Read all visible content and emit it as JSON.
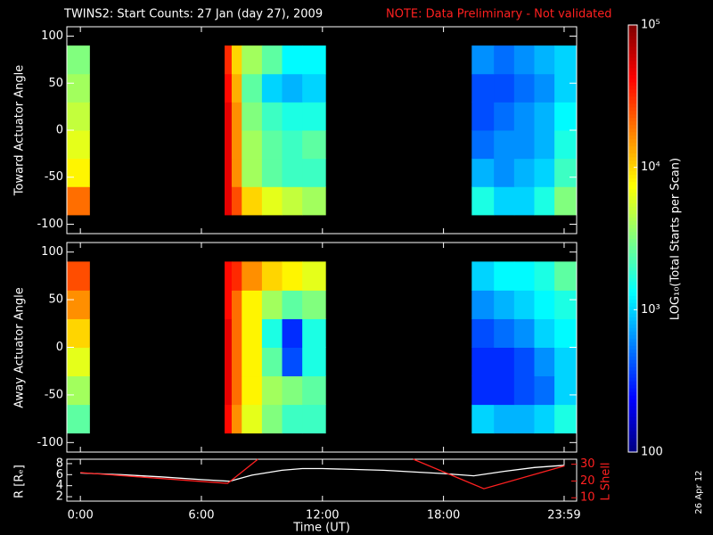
{
  "chart_data": [
    {
      "type": "heatmap",
      "title": "TWINS2: Start Counts: 27 Jan (day  27), 2009",
      "note": "NOTE: Data Preliminary - Not validated",
      "ylabel": "Toward Actuator Angle",
      "x": [
        -0.67,
        0.45,
        7.15,
        7.5,
        8,
        9,
        10,
        11,
        12.15,
        19.4,
        20.5,
        21.5,
        22.5,
        23.5,
        24.6
      ],
      "y": [
        -90,
        -60,
        -30,
        0,
        30,
        60,
        90
      ],
      "values": [
        [
          20000,
          null,
          50000,
          25000,
          10000,
          6300,
          5000,
          4000,
          null,
          1600,
          1000,
          1000,
          1600,
          3200
        ],
        [
          8000,
          null,
          50000,
          16000,
          4000,
          2500,
          2000,
          2000,
          null,
          800,
          630,
          800,
          1000,
          2000
        ],
        [
          6300,
          null,
          50000,
          16000,
          4000,
          2500,
          2000,
          2500,
          null,
          500,
          630,
          630,
          800,
          1600
        ],
        [
          5000,
          null,
          50000,
          16000,
          3200,
          2000,
          1600,
          1600,
          null,
          400,
          500,
          630,
          800,
          1300
        ],
        [
          4000,
          null,
          40000,
          13000,
          2500,
          1000,
          800,
          1000,
          null,
          400,
          400,
          500,
          630,
          1000
        ],
        [
          3200,
          null,
          32000,
          10000,
          4000,
          2500,
          1300,
          1300,
          null,
          630,
          500,
          630,
          800,
          1000
        ]
      ],
      "ylim": [
        -110,
        110
      ],
      "yticks": [
        -100,
        -50,
        0,
        50,
        100
      ],
      "zlim": [
        100,
        100000
      ],
      "log_z": true,
      "zticks": [
        {
          "value": 100000,
          "label": "10⁵"
        },
        {
          "value": 10000,
          "label": "10⁴"
        },
        {
          "value": 1000,
          "label": "10³"
        },
        100
      ],
      "zlabel": "LOG₁₀(Total Starts per Scan)"
    },
    {
      "type": "heatmap",
      "ylabel": "Away Actuator Angle",
      "x": [
        -0.67,
        0.45,
        7.15,
        7.5,
        8,
        9,
        10,
        11,
        12.15,
        19.4,
        20.5,
        21.5,
        22.5,
        23.5,
        24.6
      ],
      "y": [
        -90,
        -60,
        -30,
        0,
        30,
        60,
        90
      ],
      "values": [
        [
          2500,
          null,
          40000,
          16000,
          6300,
          3200,
          2000,
          2000,
          null,
          1000,
          800,
          800,
          1000,
          1600
        ],
        [
          4000,
          null,
          50000,
          20000,
          8000,
          4000,
          3200,
          2500,
          null,
          320,
          320,
          400,
          500,
          1000
        ],
        [
          6300,
          null,
          50000,
          20000,
          8000,
          2500,
          400,
          1600,
          null,
          320,
          320,
          400,
          630,
          1000
        ],
        [
          10000,
          null,
          50000,
          20000,
          8000,
          1600,
          320,
          1600,
          null,
          400,
          500,
          630,
          1000,
          1300
        ],
        [
          16000,
          null,
          40000,
          20000,
          8000,
          4000,
          2500,
          3200,
          null,
          630,
          800,
          1000,
          1300,
          1600
        ],
        [
          25000,
          null,
          40000,
          32000,
          16000,
          10000,
          8000,
          6300,
          null,
          1000,
          1300,
          1300,
          1600,
          2500
        ]
      ],
      "ylim": [
        -110,
        110
      ],
      "yticks": [
        -100,
        -50,
        0,
        50,
        100
      ]
    },
    {
      "type": "line",
      "xlabel": "Time (UT)",
      "xlim": [
        -0.67,
        24.6
      ],
      "xticks": [
        {
          "value": 0,
          "label": "0:00"
        },
        {
          "value": 6,
          "label": "6:00"
        },
        {
          "value": 12,
          "label": "12:00"
        },
        {
          "value": 18,
          "label": "18:00"
        },
        {
          "value": 23.98,
          "label": "23:59"
        }
      ],
      "ylabel": "R [Rₑ]",
      "ylim": [
        1.2,
        8.8
      ],
      "yticks": [
        2,
        4,
        6,
        8
      ],
      "y2label": "L Shell",
      "y2lim": [
        8,
        33
      ],
      "y2ticks": [
        10,
        20,
        30
      ],
      "series": [
        {
          "color": "#ffffff",
          "x": [
            0,
            2,
            4,
            6,
            7.4,
            8.5,
            10,
            11,
            12,
            15,
            18,
            19.5,
            21,
            22.5,
            24
          ],
          "values": [
            6.3,
            6.0,
            5.6,
            5.1,
            4.8,
            5.9,
            6.8,
            7.1,
            7.1,
            6.8,
            6.2,
            5.8,
            6.6,
            7.3,
            7.7
          ]
        },
        {
          "color": "#ff2020",
          "axis": "y2",
          "x": [
            0,
            7.3,
            8.8,
            12.5,
            16.5,
            20,
            24
          ],
          "values": [
            25,
            18.6,
            33,
            null,
            33,
            15.4,
            29
          ]
        }
      ]
    },
    {
      "date": "26 Apr 12"
    }
  ]
}
